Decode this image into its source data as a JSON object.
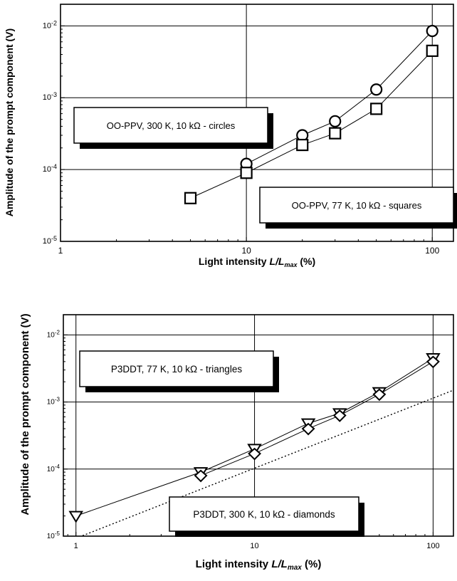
{
  "chart_data": [
    {
      "type": "scatter",
      "xscale": "log",
      "yscale": "log",
      "xlim": [
        1,
        130
      ],
      "ylim": [
        1e-05,
        0.02
      ],
      "grid": true,
      "xlabel_prefix": "Light intensity",
      "xlabel_var": "L/L",
      "xlabel_sub": "max",
      "xlabel_unit": "(%)",
      "ylabel": "Amplitude of the prompt component  (V)",
      "xticks": [
        1,
        10,
        100
      ],
      "xtick_labels": [
        "1",
        "10",
        "100"
      ],
      "yticks": [
        1e-05,
        0.0001,
        0.001,
        0.01
      ],
      "ytick_labels": [
        {
          "base": "10",
          "exp": "-5"
        },
        {
          "base": "10",
          "exp": "-4"
        },
        {
          "base": "10",
          "exp": "-3"
        },
        {
          "base": "10",
          "exp": "-2"
        }
      ],
      "legend_boxes": [
        {
          "text": "OO-PPV, 300 K, 10 kΩ   - circles"
        },
        {
          "text": "OO-PPV, 77 K, 10 kΩ   - squares"
        }
      ],
      "series": [
        {
          "marker": "circle",
          "x": [
            10,
            20,
            30,
            50,
            100
          ],
          "y": [
            0.00012,
            0.0003,
            0.00047,
            0.0013,
            0.0085
          ]
        },
        {
          "marker": "square",
          "x": [
            5,
            10,
            20,
            30,
            50,
            100
          ],
          "y": [
            4e-05,
            9e-05,
            0.00022,
            0.00032,
            0.0007,
            0.0045
          ]
        }
      ]
    },
    {
      "type": "scatter",
      "xscale": "log",
      "yscale": "log",
      "xlim": [
        0.85,
        130
      ],
      "ylim": [
        1e-05,
        0.02
      ],
      "grid": true,
      "xlabel_prefix": "Light intensity",
      "xlabel_var": "L/L",
      "xlabel_sub": "max",
      "xlabel_unit": "(%)",
      "ylabel": "Amplitude of the prompt component   (V)",
      "xticks": [
        1,
        10,
        100
      ],
      "xtick_labels": [
        "1",
        "10",
        "100"
      ],
      "yticks": [
        1e-05,
        0.0001,
        0.001,
        0.01
      ],
      "ytick_labels": [
        {
          "base": "10",
          "exp": "-5"
        },
        {
          "base": "10",
          "exp": "-4"
        },
        {
          "base": "10",
          "exp": "-3"
        },
        {
          "base": "10",
          "exp": "-2"
        }
      ],
      "legend_boxes": [
        {
          "text": "P3DDT, 77 K, 10 kΩ - triangles"
        },
        {
          "text": "P3DDT, 300 K, 10 kΩ - diamonds"
        }
      ],
      "series": [
        {
          "marker": "triangle-down",
          "x": [
            1,
            5,
            10,
            20,
            30,
            50,
            100
          ],
          "y": [
            2e-05,
            9e-05,
            0.0002,
            0.00048,
            0.00068,
            0.0014,
            0.0045
          ]
        },
        {
          "marker": "diamond",
          "x": [
            5,
            10,
            20,
            30,
            50,
            100
          ],
          "y": [
            8e-05,
            0.00017,
            0.0004,
            0.00063,
            0.0013,
            0.004
          ]
        }
      ],
      "reference_line": {
        "style": "dotted",
        "x": [
          1,
          130
        ],
        "y": [
          9.3e-06,
          0.0015
        ]
      }
    }
  ]
}
